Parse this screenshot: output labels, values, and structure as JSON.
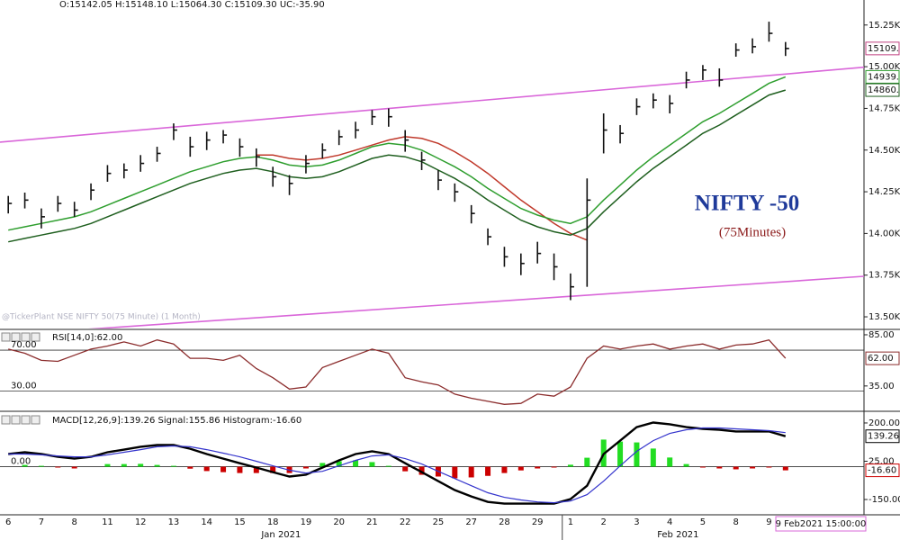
{
  "chart_data": [
    {
      "type": "ohlc",
      "subtitle": "O:15142.05  H:15148.10  L:15064.30  C:15109.30  UC:-35.90",
      "watermark": "@TickerPlant NSE NIFTY 50(75 Minute) (1 Month)",
      "annotations": [
        "NIFTY -50",
        "(75Minutes)"
      ],
      "cursor_label": "9 Feb2021 15:00:00",
      "categories": [
        "6",
        null,
        "7",
        null,
        "8",
        null,
        "11",
        null,
        "12",
        null,
        "13",
        null,
        "14",
        null,
        "15",
        null,
        "18",
        null,
        "19",
        null,
        "20",
        null,
        "21",
        null,
        "22",
        null,
        "25",
        null,
        "27",
        null,
        "28",
        null,
        "29",
        null,
        "1",
        null,
        "2",
        null,
        "3",
        null,
        "4",
        null,
        "5",
        null,
        "8",
        null,
        "9",
        null
      ],
      "months": [
        {
          "label": "Jan 2021",
          "first": 0
        },
        {
          "label": "Feb 2021",
          "first": 34
        }
      ],
      "color": "#111111",
      "high": [
        14225,
        14245,
        14150,
        14225,
        14190,
        14300,
        14410,
        14420,
        14470,
        14520,
        14660,
        14580,
        14610,
        14620,
        14570,
        14510,
        14400,
        14350,
        14470,
        14540,
        14620,
        14670,
        14740,
        14750,
        14620,
        14490,
        14380,
        14300,
        14170,
        14030,
        13920,
        13880,
        13950,
        13880,
        13760,
        14330,
        14720,
        14650,
        14810,
        14840,
        14830,
        14970,
        15010,
        14990,
        15140,
        15170,
        15270,
        15148.1
      ],
      "low": [
        14120,
        14150,
        14030,
        14130,
        14100,
        14200,
        14310,
        14330,
        14370,
        14430,
        14560,
        14460,
        14500,
        14540,
        14460,
        14400,
        14280,
        14230,
        14360,
        14450,
        14530,
        14570,
        14650,
        14640,
        14490,
        14380,
        14260,
        14190,
        14060,
        13930,
        13800,
        13750,
        13820,
        13720,
        13600,
        13680,
        14480,
        14540,
        14710,
        14750,
        14720,
        14870,
        14920,
        14880,
        15060,
        15080,
        15150,
        15064.3
      ],
      "close": [
        14180,
        14200,
        14100,
        14180,
        14140,
        14260,
        14360,
        14380,
        14420,
        14480,
        14620,
        14520,
        14560,
        14590,
        14520,
        14460,
        14340,
        14300,
        14420,
        14500,
        14580,
        14620,
        14700,
        14700,
        14560,
        14440,
        14320,
        14250,
        14120,
        13980,
        13860,
        13820,
        13880,
        13800,
        13680,
        14200,
        14620,
        14600,
        14760,
        14800,
        14780,
        14920,
        14980,
        14920,
        15100,
        15120,
        15200,
        15109.3
      ],
      "close_label": "15109.",
      "series": [
        {
          "color": "#c0392b",
          "values": [
            null,
            null,
            null,
            null,
            null,
            null,
            null,
            null,
            null,
            null,
            null,
            null,
            null,
            null,
            null,
            14470,
            14470,
            14450,
            14440,
            14450,
            14470,
            14500,
            14530,
            14560,
            14580,
            14570,
            14540,
            14490,
            14430,
            14360,
            14280,
            14200,
            14130,
            14060,
            14000,
            13960,
            null,
            null,
            null,
            null,
            null,
            null,
            null,
            null,
            null,
            null,
            null,
            null
          ]
        },
        {
          "color": "#2e9e2e",
          "values": [
            14020,
            14040,
            14060,
            14080,
            14100,
            14130,
            14170,
            14210,
            14250,
            14290,
            14330,
            14370,
            14400,
            14430,
            14450,
            14460,
            14440,
            14410,
            14400,
            14410,
            14440,
            14480,
            14520,
            14540,
            14530,
            14500,
            14450,
            14400,
            14340,
            14270,
            14210,
            14150,
            14110,
            14080,
            14060,
            14100,
            14200,
            14290,
            14380,
            14460,
            14530,
            14600,
            14670,
            14720,
            14780,
            14840,
            14900,
            14939
          ],
          "last_label": "14939."
        },
        {
          "color": "#1f5f1f",
          "values": [
            13950,
            13970,
            13990,
            14010,
            14030,
            14060,
            14100,
            14140,
            14180,
            14220,
            14260,
            14300,
            14330,
            14360,
            14380,
            14390,
            14370,
            14340,
            14330,
            14340,
            14370,
            14410,
            14450,
            14470,
            14460,
            14430,
            14380,
            14330,
            14270,
            14200,
            14140,
            14080,
            14040,
            14010,
            13990,
            14030,
            14130,
            14220,
            14310,
            14390,
            14460,
            14530,
            14600,
            14650,
            14710,
            14770,
            14830,
            14860
          ],
          "last_label": "14860."
        }
      ],
      "trendlines": [
        {
          "color": "#d966d9",
          "values": [
            14552,
            14956
          ]
        },
        {
          "color": "#d966d9",
          "values": [
            13393,
            13711
          ]
        }
      ],
      "ylim": [
        13430,
        15400
      ],
      "yticks": [
        {
          "value": 13500,
          "label": "13.50K"
        },
        {
          "value": 13750,
          "label": "13.75K"
        },
        {
          "value": 14000,
          "label": "14.00K"
        },
        {
          "value": 14250,
          "label": "14.25K"
        },
        {
          "value": 14500,
          "label": "14.50K"
        },
        {
          "value": 14750,
          "label": "14.75K"
        },
        {
          "value": 15000,
          "label": "15.00K"
        },
        {
          "value": 15250,
          "label": "15.25K"
        }
      ]
    },
    {
      "type": "line",
      "title": "RSI[14,0]:62.00",
      "color": "#8b2c2c",
      "values": [
        71,
        67,
        60,
        59,
        65,
        71,
        74,
        78,
        74,
        80,
        76,
        62,
        62,
        60,
        65,
        52,
        43,
        32,
        34,
        53,
        59,
        65,
        71,
        67,
        43,
        39,
        36,
        27,
        23,
        20,
        17,
        18,
        27,
        25,
        34,
        62,
        74,
        71,
        74,
        76,
        71,
        74,
        76,
        71,
        75,
        76,
        80,
        62
      ],
      "last_label": "62.00",
      "levels": [
        {
          "value": 70,
          "label": "70.00"
        },
        {
          "value": 30,
          "label": "30.00"
        }
      ],
      "ylim": [
        12,
        88.5
      ],
      "yticks": [
        {
          "value": 85,
          "label": "85.00"
        },
        {
          "value": 35,
          "label": "35.00"
        }
      ]
    },
    {
      "type": "macd",
      "title": "MACD[12,26,9]:139.26  Signal:155.86  Histogram:-16.60",
      "series": [
        {
          "color": "#000000",
          "width": 2.4,
          "values": [
            58,
            66,
            58,
            45,
            37,
            45,
            66,
            78,
            91,
            99,
            99,
            82,
            58,
            37,
            16,
            -4,
            -25,
            -45,
            -37,
            -4,
            29,
            58,
            70,
            58,
            16,
            -25,
            -66,
            -107,
            -136,
            -161,
            -169,
            -169,
            -169,
            -169,
            -148,
            -87,
            58,
            119,
            181,
            202,
            194,
            181,
            173,
            169,
            161,
            161,
            161,
            139.26
          ],
          "last_label": "139.26"
        },
        {
          "color": "#3333cc",
          "width": 1.2,
          "values": [
            58,
            58,
            54,
            49,
            45,
            45,
            54,
            66,
            78,
            91,
            95,
            91,
            78,
            62,
            45,
            25,
            4,
            -16,
            -29,
            -21,
            4,
            29,
            49,
            54,
            37,
            12,
            -21,
            -54,
            -87,
            -119,
            -140,
            -152,
            -161,
            -165,
            -157,
            -128,
            -66,
            4,
            70,
            119,
            152,
            169,
            177,
            177,
            173,
            169,
            165,
            155.86
          ]
        }
      ],
      "histogram": {
        "positive_color": "#22dd22",
        "negative_color": "#cc0000",
        "values": [
          0,
          8,
          4,
          -4,
          -8,
          0,
          12,
          12,
          13,
          8,
          4,
          -9,
          -20,
          -25,
          -29,
          -29,
          -29,
          -29,
          -8,
          17,
          25,
          29,
          21,
          4,
          -21,
          -37,
          -45,
          -53,
          -49,
          -42,
          -29,
          -17,
          -8,
          -4,
          9,
          41,
          124,
          115,
          111,
          83,
          42,
          12,
          -4,
          -8,
          -12,
          -8,
          -4,
          -16.6
        ],
        "last_label": "-16.60"
      },
      "levels": [
        {
          "value": 0,
          "label": "0.00"
        }
      ],
      "ylim": [
        -220,
        241
      ],
      "yticks": [
        {
          "value": 200,
          "label": "200.00"
        },
        {
          "value": 25,
          "label": "25.00"
        },
        {
          "value": -150,
          "label": "-150.00"
        }
      ]
    }
  ]
}
